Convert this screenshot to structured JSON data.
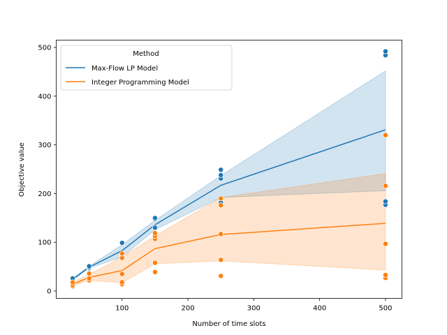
{
  "chart_data": {
    "type": "line",
    "title": "",
    "xlabel": "Number of time slots",
    "ylabel": "Objective value",
    "xlim": [
      0,
      525
    ],
    "ylim": [
      -15,
      515
    ],
    "xticks": [
      100,
      200,
      300,
      400,
      500
    ],
    "yticks": [
      0,
      100,
      200,
      300,
      400,
      500
    ],
    "grid": false,
    "legend": {
      "title": "Method",
      "position": "top-left"
    },
    "series": [
      {
        "name": "Max-Flow LP Model",
        "color": "#1f77b4",
        "x": [
          25,
          50,
          100,
          150,
          250,
          500
        ],
        "mean": [
          24,
          49,
          83,
          136,
          217,
          331
        ],
        "ci_low": [
          23,
          47,
          70,
          126,
          192,
          206
        ],
        "ci_high": [
          26,
          51,
          95,
          145,
          237,
          452
        ],
        "points": [
          [
            25,
            22
          ],
          [
            25,
            24
          ],
          [
            25,
            26
          ],
          [
            50,
            47
          ],
          [
            50,
            49
          ],
          [
            50,
            51
          ],
          [
            100,
            67
          ],
          [
            100,
            75
          ],
          [
            100,
            99
          ],
          [
            150,
            130
          ],
          [
            150,
            148
          ],
          [
            150,
            150
          ],
          [
            250,
            182
          ],
          [
            250,
            231
          ],
          [
            250,
            238
          ],
          [
            250,
            249
          ],
          [
            500,
            177
          ],
          [
            500,
            184
          ],
          [
            500,
            484
          ],
          [
            500,
            492
          ]
        ]
      },
      {
        "name": "Integer Programming Model",
        "color": "#ff7f0e",
        "x": [
          25,
          50,
          100,
          150,
          250,
          500
        ],
        "mean": [
          14,
          28,
          42,
          87,
          116,
          139
        ],
        "ci_low": [
          11,
          22,
          17,
          56,
          62,
          43
        ],
        "ci_high": [
          18,
          34,
          70,
          113,
          192,
          241
        ],
        "points": [
          [
            25,
            10
          ],
          [
            25,
            13
          ],
          [
            25,
            18
          ],
          [
            50,
            22
          ],
          [
            50,
            26
          ],
          [
            50,
            36
          ],
          [
            100,
            14
          ],
          [
            100,
            18
          ],
          [
            100,
            35
          ],
          [
            100,
            68
          ],
          [
            100,
            77
          ],
          [
            150,
            39
          ],
          [
            150,
            58
          ],
          [
            150,
            107
          ],
          [
            150,
            113
          ],
          [
            150,
            119
          ],
          [
            250,
            31
          ],
          [
            250,
            64
          ],
          [
            250,
            117
          ],
          [
            250,
            176
          ],
          [
            250,
            190
          ],
          [
            500,
            27
          ],
          [
            500,
            33
          ],
          [
            500,
            97
          ],
          [
            500,
            216
          ],
          [
            500,
            320
          ]
        ]
      }
    ]
  }
}
